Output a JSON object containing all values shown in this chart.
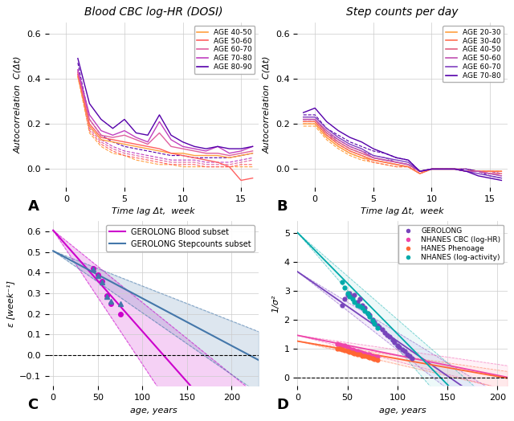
{
  "panel_A": {
    "title": "Blood CBC log-HR (DOSI)",
    "xlabel": "Time lag Δt,  week",
    "ylabel": "Autocorrelation  C(Δt)",
    "xlim": [
      -1.5,
      16.5
    ],
    "ylim": [
      -0.08,
      0.65
    ],
    "yticks": [
      0.0,
      0.2,
      0.4,
      0.6
    ],
    "xticks": [
      0,
      5,
      10,
      15
    ],
    "age_groups": [
      "AGE 40-50",
      "AGE 50-60",
      "AGE 60-70",
      "AGE 70-80",
      "AGE 80-90"
    ],
    "colors": [
      "#FFA040",
      "#FF6060",
      "#E060A0",
      "#C040C0",
      "#5500AA"
    ],
    "solid_x": [
      1,
      2,
      3,
      4,
      5,
      6,
      7,
      8,
      9,
      10,
      11,
      12,
      13,
      14,
      15,
      16
    ],
    "solid_data": [
      [
        0.41,
        0.19,
        0.13,
        0.12,
        0.11,
        0.1,
        0.09,
        0.08,
        0.07,
        0.07,
        0.06,
        0.06,
        0.06,
        0.05,
        0.06,
        0.07
      ],
      [
        0.42,
        0.2,
        0.14,
        0.13,
        0.12,
        0.11,
        0.1,
        0.09,
        0.07,
        0.06,
        0.05,
        0.04,
        0.03,
        0.01,
        -0.05,
        -0.04
      ],
      [
        0.43,
        0.22,
        0.15,
        0.14,
        0.15,
        0.13,
        0.11,
        0.16,
        0.1,
        0.09,
        0.08,
        0.07,
        0.07,
        0.06,
        0.07,
        0.08
      ],
      [
        0.44,
        0.24,
        0.17,
        0.15,
        0.17,
        0.14,
        0.12,
        0.21,
        0.13,
        0.1,
        0.09,
        0.08,
        0.1,
        0.07,
        0.08,
        0.1
      ],
      [
        0.49,
        0.29,
        0.22,
        0.18,
        0.22,
        0.16,
        0.15,
        0.24,
        0.15,
        0.12,
        0.1,
        0.09,
        0.1,
        0.09,
        0.09,
        0.1
      ]
    ],
    "dashed_data": [
      [
        0.41,
        0.16,
        0.1,
        0.07,
        0.06,
        0.04,
        0.03,
        0.02,
        0.02,
        0.01,
        0.01,
        0.01,
        0.01,
        0.01,
        0.01,
        0.01
      ],
      [
        0.42,
        0.17,
        0.11,
        0.08,
        0.06,
        0.05,
        0.04,
        0.03,
        0.02,
        0.02,
        0.02,
        0.01,
        0.01,
        0.01,
        0.02,
        0.02
      ],
      [
        0.43,
        0.18,
        0.12,
        0.09,
        0.07,
        0.06,
        0.05,
        0.04,
        0.03,
        0.03,
        0.03,
        0.02,
        0.02,
        0.02,
        0.03,
        0.04
      ],
      [
        0.44,
        0.19,
        0.13,
        0.1,
        0.08,
        0.07,
        0.06,
        0.05,
        0.04,
        0.04,
        0.04,
        0.03,
        0.03,
        0.03,
        0.04,
        0.05
      ],
      [
        0.47,
        0.22,
        0.15,
        0.12,
        0.1,
        0.09,
        0.08,
        0.07,
        0.06,
        0.06,
        0.05,
        0.05,
        0.05,
        0.05,
        0.06,
        0.07
      ]
    ]
  },
  "panel_B": {
    "title": "Step counts per day",
    "xlabel": "Time lag Δt,  week",
    "ylabel": "Autocorrelation  C(Δt)",
    "xlim": [
      -1.5,
      16.5
    ],
    "ylim": [
      -0.08,
      0.65
    ],
    "yticks": [
      0.0,
      0.2,
      0.4,
      0.6
    ],
    "xticks": [
      0,
      5,
      10,
      15
    ],
    "age_groups": [
      "AGE 20-30",
      "AGE 30-40",
      "AGE 40-50",
      "AGE 50-60",
      "AGE 60-70",
      "AGE 70-80"
    ],
    "colors": [
      "#FFA040",
      "#FF7050",
      "#E06080",
      "#C050B0",
      "#8040C0",
      "#5500AA"
    ],
    "solid_x": [
      -1,
      0,
      1,
      2,
      3,
      4,
      5,
      6,
      7,
      8,
      9,
      10,
      11,
      12,
      13,
      14,
      15,
      16
    ],
    "solid_data": [
      [
        0.2,
        0.2,
        0.14,
        0.1,
        0.07,
        0.05,
        0.04,
        0.03,
        0.02,
        0.01,
        -0.02,
        0.0,
        0.0,
        0.0,
        -0.01,
        -0.01,
        -0.01,
        -0.01
      ],
      [
        0.21,
        0.21,
        0.15,
        0.11,
        0.08,
        0.06,
        0.04,
        0.03,
        0.02,
        0.01,
        -0.02,
        0.0,
        0.0,
        0.0,
        -0.01,
        -0.01,
        -0.01,
        -0.01
      ],
      [
        0.22,
        0.22,
        0.16,
        0.12,
        0.09,
        0.07,
        0.05,
        0.04,
        0.03,
        0.02,
        -0.01,
        0.0,
        0.0,
        0.0,
        -0.01,
        -0.01,
        -0.02,
        -0.02
      ],
      [
        0.22,
        0.22,
        0.17,
        0.13,
        0.1,
        0.08,
        0.05,
        0.04,
        0.03,
        0.02,
        -0.01,
        0.0,
        0.0,
        0.0,
        -0.01,
        -0.01,
        -0.02,
        -0.03
      ],
      [
        0.23,
        0.23,
        0.18,
        0.14,
        0.11,
        0.09,
        0.06,
        0.05,
        0.04,
        0.03,
        -0.01,
        0.0,
        0.0,
        0.0,
        -0.01,
        -0.02,
        -0.03,
        -0.04
      ],
      [
        0.25,
        0.27,
        0.21,
        0.17,
        0.14,
        0.12,
        0.09,
        0.07,
        0.05,
        0.04,
        -0.01,
        0.0,
        0.0,
        0.0,
        -0.01,
        -0.03,
        -0.04,
        -0.05
      ]
    ],
    "dashed_data": [
      [
        0.19,
        0.19,
        0.13,
        0.09,
        0.06,
        0.04,
        0.03,
        0.02,
        0.01,
        0.01,
        -0.02,
        0.0,
        0.0,
        0.0,
        0.0,
        -0.01,
        -0.01,
        -0.01
      ],
      [
        0.2,
        0.2,
        0.14,
        0.1,
        0.07,
        0.05,
        0.03,
        0.02,
        0.01,
        0.01,
        -0.02,
        0.0,
        0.0,
        0.0,
        0.0,
        -0.01,
        -0.01,
        -0.01
      ],
      [
        0.21,
        0.21,
        0.15,
        0.11,
        0.08,
        0.06,
        0.04,
        0.03,
        0.02,
        0.01,
        -0.01,
        0.0,
        0.0,
        0.0,
        0.0,
        -0.01,
        -0.01,
        -0.02
      ],
      [
        0.21,
        0.21,
        0.15,
        0.12,
        0.09,
        0.07,
        0.05,
        0.04,
        0.03,
        0.02,
        -0.01,
        0.0,
        0.0,
        0.0,
        0.0,
        -0.01,
        -0.01,
        -0.02
      ],
      [
        0.22,
        0.22,
        0.16,
        0.13,
        0.1,
        0.08,
        0.06,
        0.05,
        0.03,
        0.02,
        -0.01,
        0.0,
        0.0,
        0.0,
        0.0,
        -0.01,
        -0.02,
        -0.03
      ],
      [
        0.24,
        0.24,
        0.18,
        0.15,
        0.12,
        0.1,
        0.08,
        0.07,
        0.05,
        0.04,
        -0.01,
        0.0,
        0.0,
        0.0,
        0.0,
        -0.01,
        -0.03,
        -0.04
      ]
    ]
  },
  "panel_C": {
    "xlabel": "age, years",
    "ylabel": "ε [week⁻¹]",
    "xlim": [
      -5,
      230
    ],
    "ylim": [
      -0.15,
      0.65
    ],
    "yticks": [
      -0.1,
      0.0,
      0.1,
      0.2,
      0.3,
      0.4,
      0.5,
      0.6
    ],
    "xticks": [
      0,
      50,
      100,
      150,
      200
    ],
    "blood_line": {
      "slope": -0.0049,
      "intercept": 0.605,
      "color": "#CC00CC"
    },
    "step_line": {
      "slope": -0.0023,
      "intercept": 0.505,
      "color": "#4477AA"
    },
    "blood_ci_upper_slope": -0.0035,
    "blood_ci_lower_slope": -0.0065,
    "blood_ci_intercept": 0.605,
    "step_ci_upper_slope": -0.0017,
    "step_ci_lower_slope": -0.003,
    "step_ci_intercept": 0.505,
    "blood_points": [
      [
        45,
        0.42
      ],
      [
        50,
        0.39
      ],
      [
        55,
        0.36
      ],
      [
        60,
        0.29
      ],
      [
        65,
        0.25
      ],
      [
        75,
        0.2
      ]
    ],
    "step_points": [
      [
        45,
        0.415
      ],
      [
        50,
        0.385
      ],
      [
        55,
        0.355
      ],
      [
        60,
        0.285
      ],
      [
        65,
        0.26
      ],
      [
        75,
        0.25
      ]
    ],
    "blood_pt_marker": "o",
    "step_pt_marker": "^",
    "legend": [
      "GEROLONG Blood subset",
      "GEROLONG Stepcounts subset"
    ]
  },
  "panel_D": {
    "xlabel": "age, years",
    "ylabel": "1/σ²",
    "xlim": [
      0,
      210
    ],
    "ylim": [
      -0.3,
      5.4
    ],
    "yticks": [
      0,
      1,
      2,
      3,
      4,
      5
    ],
    "xticks": [
      0,
      50,
      100,
      150,
      200
    ],
    "series": [
      {
        "label": "GEROLONG",
        "color": "#7744BB",
        "marker": "o",
        "x": [
          45,
          47,
          50,
          52,
          55,
          57,
          60,
          62,
          65,
          67,
          70,
          72,
          75,
          77,
          80,
          82,
          85,
          87,
          90,
          92,
          95,
          97,
          100,
          102,
          105,
          107,
          110,
          112,
          115
        ],
        "y": [
          2.5,
          2.7,
          2.85,
          2.9,
          2.8,
          2.85,
          2.6,
          2.7,
          2.5,
          2.4,
          2.2,
          2.15,
          2.0,
          1.9,
          1.8,
          1.75,
          1.65,
          1.55,
          1.45,
          1.4,
          1.3,
          1.2,
          1.1,
          1.05,
          0.95,
          0.9,
          0.8,
          0.75,
          0.65
        ],
        "line_slope": -0.024,
        "line_intercept": 3.65,
        "ci_upper_slope": -0.021,
        "ci_upper_intercept": 3.65,
        "ci_lower_slope": -0.027,
        "ci_lower_intercept": 3.65,
        "line_color": "#7744BB",
        "ci_color": "#BB88EE"
      },
      {
        "label": "NHANES CBC (log-HR)",
        "color": "#EE44AA",
        "marker": "o",
        "x": [
          40,
          42,
          45,
          47,
          50,
          52,
          55,
          57,
          60,
          62,
          65,
          67,
          70,
          72,
          75,
          77,
          80
        ],
        "y": [
          1.15,
          1.12,
          1.1,
          1.1,
          1.05,
          1.0,
          0.95,
          0.92,
          0.9,
          0.88,
          0.85,
          0.82,
          0.8,
          0.78,
          0.75,
          0.72,
          0.7
        ],
        "line_slope": -0.0069,
        "line_intercept": 1.45,
        "ci_upper_slope": -0.005,
        "ci_upper_intercept": 1.45,
        "ci_lower_slope": -0.009,
        "ci_lower_intercept": 1.45,
        "line_color": "#EE44AA",
        "ci_color": "#FFAACC"
      },
      {
        "label": "HANES Phenoage",
        "color": "#FF6633",
        "marker": "o",
        "x": [
          40,
          42,
          45,
          47,
          50,
          52,
          55,
          57,
          60,
          62,
          65,
          67,
          70,
          72,
          75,
          77,
          80
        ],
        "y": [
          1.0,
          0.98,
          0.95,
          0.93,
          0.9,
          0.88,
          0.85,
          0.83,
          0.8,
          0.78,
          0.75,
          0.73,
          0.7,
          0.68,
          0.65,
          0.62,
          0.6
        ],
        "line_slope": -0.0061,
        "line_intercept": 1.25,
        "ci_upper_slope": -0.005,
        "ci_upper_intercept": 1.25,
        "ci_lower_slope": -0.008,
        "ci_lower_intercept": 1.25,
        "line_color": "#FF6633",
        "ci_color": "#FFBBAA"
      },
      {
        "label": "NHANES (log-activity)",
        "color": "#00AAAA",
        "marker": "o",
        "x": [
          45,
          47,
          50,
          52,
          55,
          57,
          60,
          62,
          65,
          67,
          70,
          72,
          75,
          77,
          80
        ],
        "y": [
          3.3,
          3.1,
          2.9,
          2.8,
          2.7,
          2.6,
          2.5,
          2.45,
          2.4,
          2.3,
          2.2,
          2.1,
          1.95,
          1.85,
          1.7
        ],
        "line_slope": -0.035,
        "line_intercept": 5.0,
        "ci_upper_slope": -0.03,
        "ci_upper_intercept": 5.0,
        "ci_lower_slope": -0.04,
        "ci_lower_intercept": 5.0,
        "line_color": "#00AAAA",
        "ci_color": "#88DDDD"
      }
    ],
    "dashed_y": 0.0
  },
  "bg_color": "#FFFFFF",
  "grid_color": "#CCCCCC",
  "label_fontsize": 8,
  "title_fontsize": 10,
  "tick_fontsize": 8
}
